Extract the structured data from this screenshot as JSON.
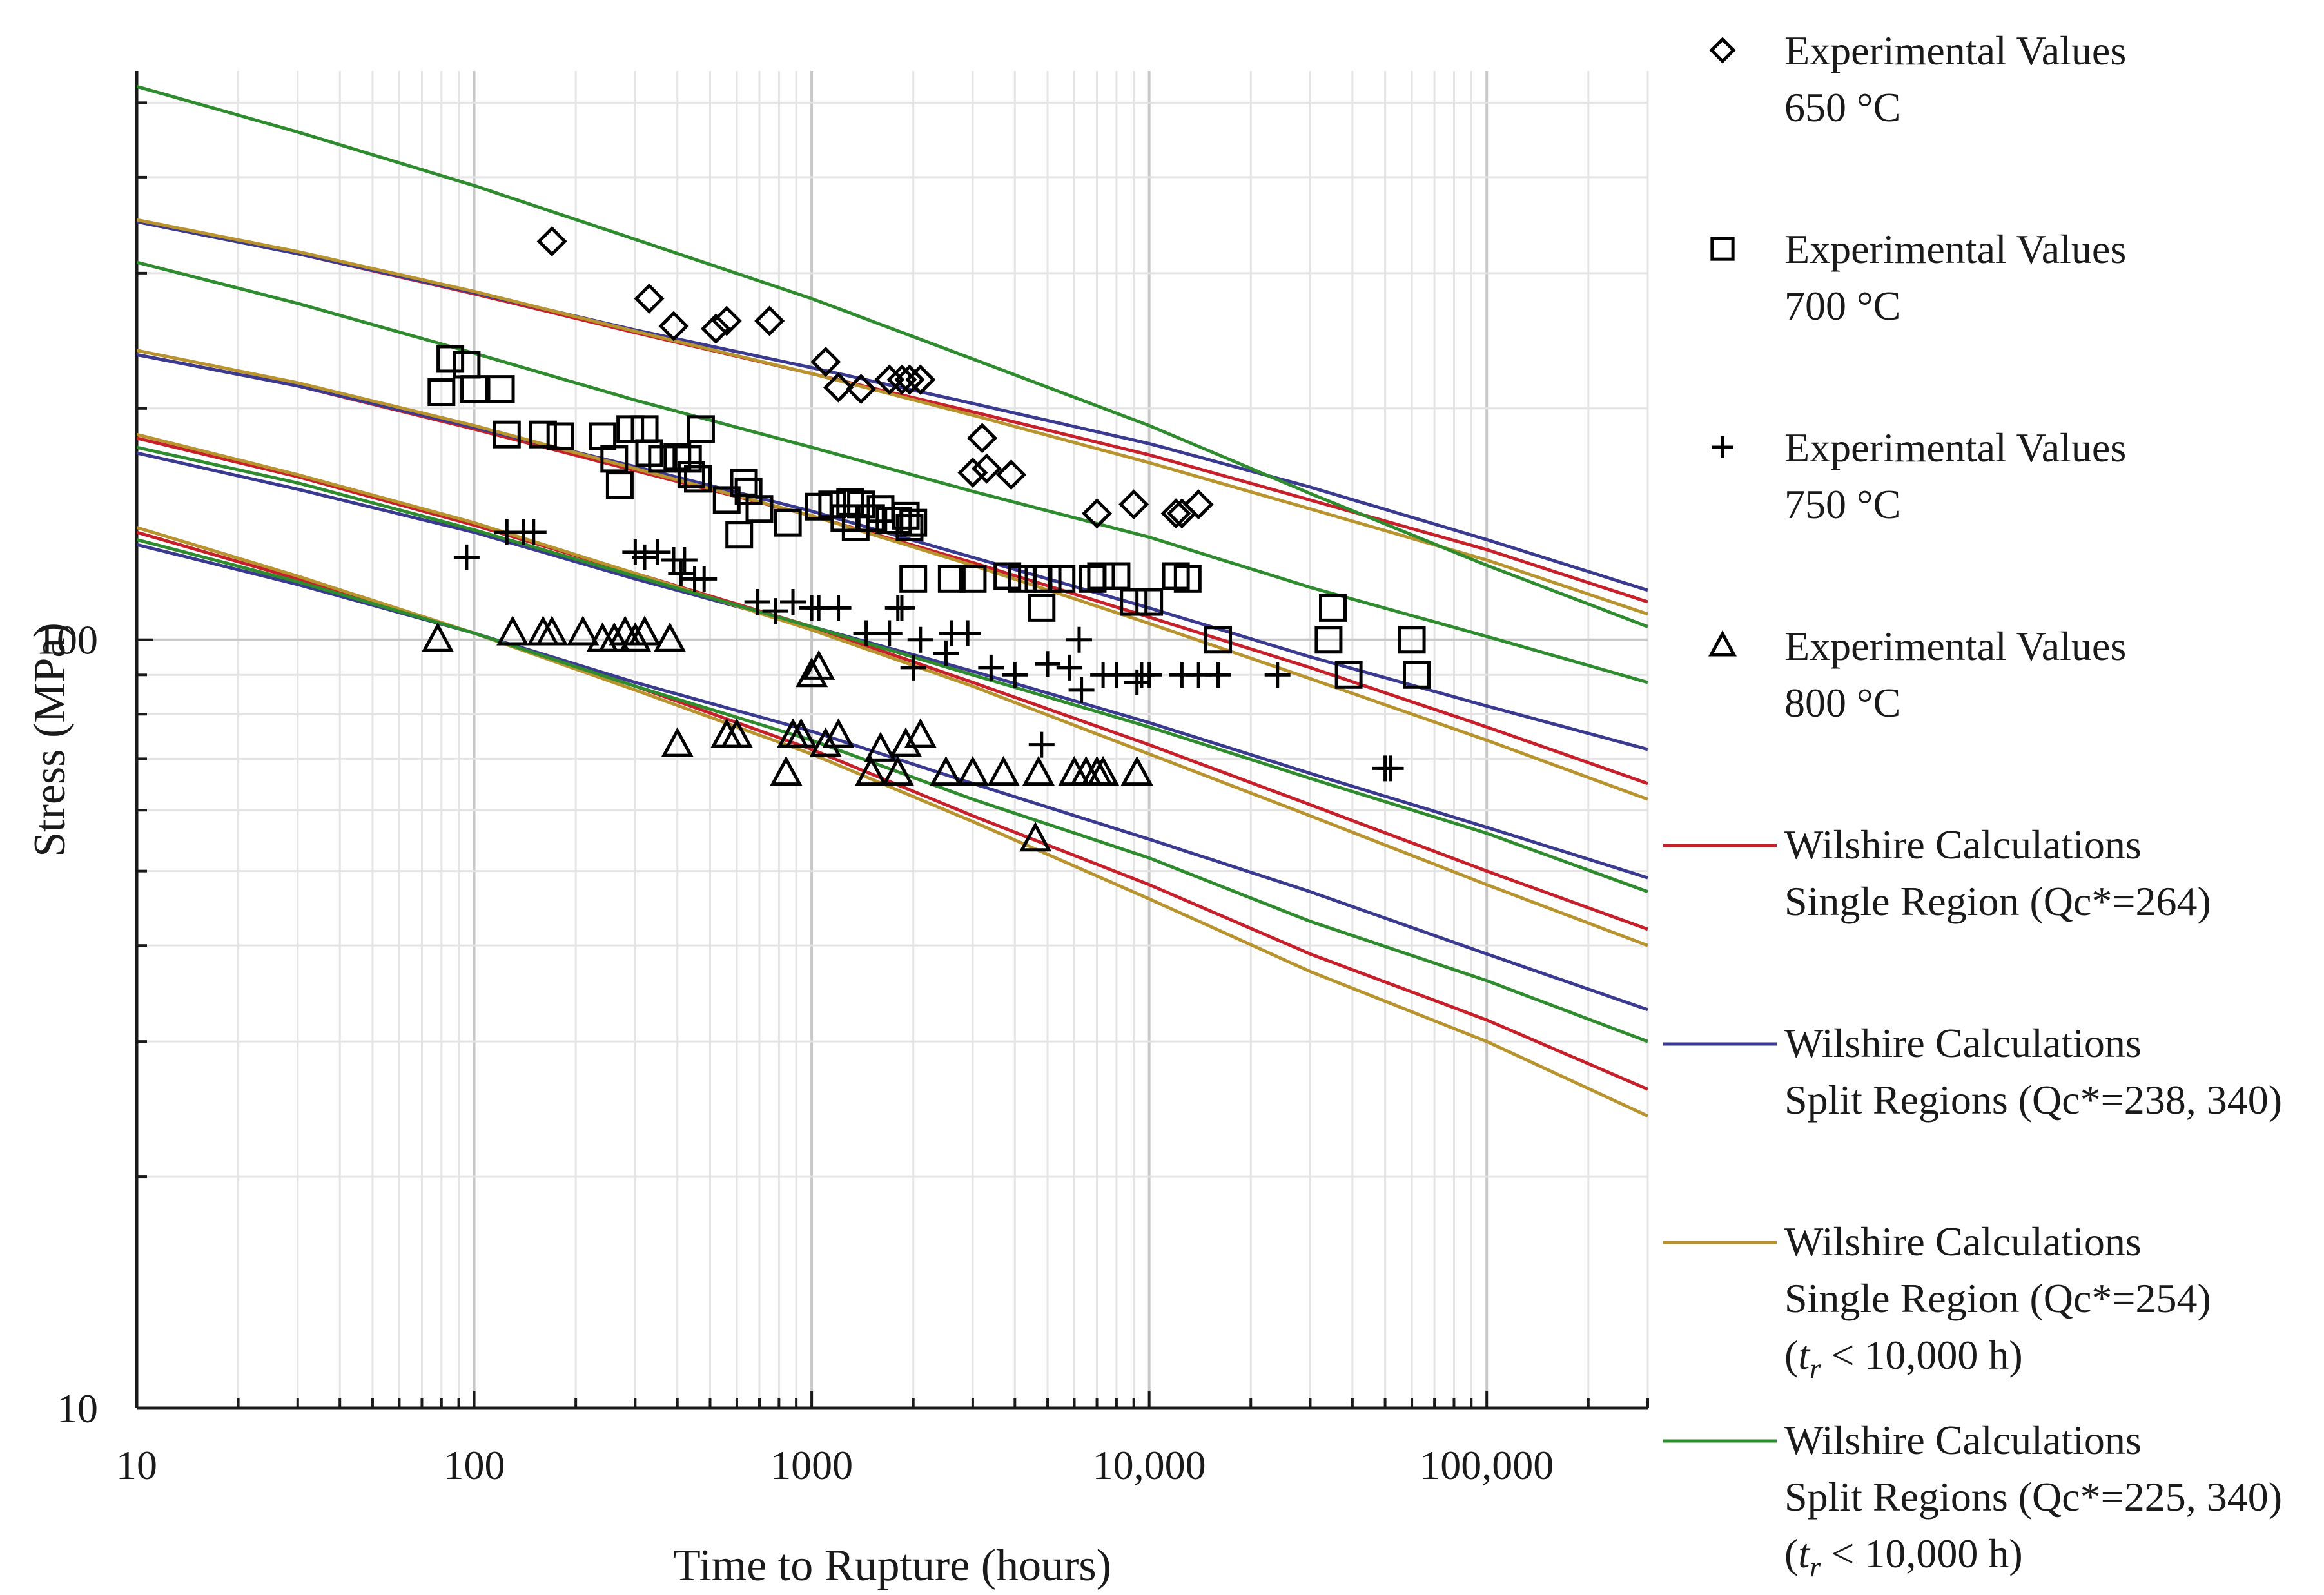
{
  "chart_data": {
    "type": "scatter",
    "xlabel": "Time to Rupture (hours)",
    "ylabel": "Stress (MPa)",
    "xscale": "log",
    "yscale": "log",
    "xlim": [
      10,
      300000
    ],
    "ylim": [
      10,
      550
    ],
    "grid": true,
    "legend_position": "right",
    "x_tick_labels": [
      {
        "value": 10,
        "label": "10"
      },
      {
        "value": 100,
        "label": "100"
      },
      {
        "value": 1000,
        "label": "1000"
      },
      {
        "value": 10000,
        "label": "10,000"
      },
      {
        "value": 100000,
        "label": "100,000"
      }
    ],
    "y_tick_labels": [
      {
        "value": 10,
        "label": "10"
      },
      {
        "value": 100,
        "label": "100"
      }
    ],
    "markers": [
      {
        "legend": [
          "Experimental Values",
          "650 °C"
        ],
        "symbol": "diamond",
        "color": "#000000",
        "points": [
          [
            170,
            330
          ],
          [
            330,
            278
          ],
          [
            390,
            256
          ],
          [
            520,
            254
          ],
          [
            560,
            260
          ],
          [
            750,
            260
          ],
          [
            1100,
            230
          ],
          [
            1200,
            213
          ],
          [
            1400,
            212
          ],
          [
            1700,
            218
          ],
          [
            1850,
            218
          ],
          [
            1950,
            218
          ],
          [
            2100,
            218
          ],
          [
            3000,
            165
          ],
          [
            3200,
            183
          ],
          [
            3300,
            167
          ],
          [
            3900,
            164
          ],
          [
            7000,
            146
          ],
          [
            9000,
            150
          ],
          [
            12000,
            146
          ],
          [
            12500,
            146
          ],
          [
            14000,
            150
          ]
        ]
      },
      {
        "legend": [
          "Experimental Values",
          "700 °C"
        ],
        "symbol": "square",
        "color": "#000000",
        "points": [
          [
            80,
            210
          ],
          [
            85,
            232
          ],
          [
            95,
            228
          ],
          [
            100,
            212
          ],
          [
            120,
            212
          ],
          [
            125,
            185
          ],
          [
            160,
            185
          ],
          [
            180,
            184
          ],
          [
            240,
            184
          ],
          [
            260,
            172
          ],
          [
            270,
            159
          ],
          [
            290,
            188
          ],
          [
            320,
            188
          ],
          [
            330,
            175
          ],
          [
            360,
            172
          ],
          [
            400,
            173
          ],
          [
            430,
            172
          ],
          [
            440,
            164
          ],
          [
            460,
            162
          ],
          [
            470,
            188
          ],
          [
            560,
            152
          ],
          [
            610,
            137
          ],
          [
            630,
            160
          ],
          [
            650,
            156
          ],
          [
            700,
            148
          ],
          [
            850,
            142
          ],
          [
            1050,
            149
          ],
          [
            1150,
            150
          ],
          [
            1250,
            144
          ],
          [
            1300,
            151
          ],
          [
            1350,
            140
          ],
          [
            1400,
            150
          ],
          [
            1500,
            144
          ],
          [
            1600,
            148
          ],
          [
            1700,
            143
          ],
          [
            1800,
            143
          ],
          [
            1900,
            145
          ],
          [
            1950,
            140
          ],
          [
            2000,
            142
          ],
          [
            2000,
            120
          ],
          [
            2600,
            120
          ],
          [
            3000,
            120
          ],
          [
            3800,
            121
          ],
          [
            4200,
            120
          ],
          [
            4700,
            120
          ],
          [
            4800,
            110
          ],
          [
            5000,
            120
          ],
          [
            5500,
            120
          ],
          [
            6800,
            120
          ],
          [
            7200,
            121
          ],
          [
            8000,
            121
          ],
          [
            9000,
            112
          ],
          [
            10000,
            112
          ],
          [
            12000,
            121
          ],
          [
            13000,
            120
          ],
          [
            16000,
            100
          ],
          [
            34000,
            100
          ],
          [
            35000,
            110
          ],
          [
            39000,
            90
          ],
          [
            60000,
            100
          ],
          [
            62000,
            90
          ]
        ]
      },
      {
        "legend": [
          "Experimental Values",
          "750 °C"
        ],
        "symbol": "plus",
        "color": "#000000",
        "points": [
          [
            95,
            128
          ],
          [
            125,
            138
          ],
          [
            140,
            138
          ],
          [
            150,
            138
          ],
          [
            300,
            130
          ],
          [
            320,
            128
          ],
          [
            350,
            130
          ],
          [
            390,
            127
          ],
          [
            410,
            122
          ],
          [
            420,
            127
          ],
          [
            450,
            120
          ],
          [
            480,
            120
          ],
          [
            690,
            112
          ],
          [
            780,
            109
          ],
          [
            880,
            112
          ],
          [
            1000,
            110
          ],
          [
            1050,
            110
          ],
          [
            1200,
            110
          ],
          [
            1450,
            102
          ],
          [
            1700,
            102
          ],
          [
            1800,
            110
          ],
          [
            1850,
            110
          ],
          [
            2000,
            92
          ],
          [
            2100,
            100
          ],
          [
            2500,
            96
          ],
          [
            2600,
            102
          ],
          [
            2900,
            102
          ],
          [
            3400,
            92
          ],
          [
            4000,
            90
          ],
          [
            4800,
            73
          ],
          [
            5000,
            93
          ],
          [
            5800,
            92
          ],
          [
            6200,
            100
          ],
          [
            6300,
            86
          ],
          [
            7300,
            90
          ],
          [
            8000,
            90
          ],
          [
            9200,
            88
          ],
          [
            9500,
            90
          ],
          [
            10000,
            90
          ],
          [
            12500,
            90
          ],
          [
            14000,
            90
          ],
          [
            16000,
            90
          ],
          [
            24000,
            90
          ],
          [
            50000,
            68
          ],
          [
            52000,
            68
          ]
        ]
      },
      {
        "legend": [
          "Experimental Values",
          "800 °C"
        ],
        "symbol": "triangle",
        "color": "#000000",
        "points": [
          [
            78,
            100
          ],
          [
            130,
            102
          ],
          [
            160,
            102
          ],
          [
            170,
            102
          ],
          [
            210,
            102
          ],
          [
            240,
            100
          ],
          [
            260,
            100
          ],
          [
            280,
            102
          ],
          [
            300,
            100
          ],
          [
            320,
            102
          ],
          [
            380,
            100
          ],
          [
            400,
            73
          ],
          [
            560,
            75
          ],
          [
            600,
            75
          ],
          [
            840,
            67
          ],
          [
            880,
            75
          ],
          [
            930,
            75
          ],
          [
            1000,
            90
          ],
          [
            1050,
            92
          ],
          [
            1100,
            73
          ],
          [
            1200,
            75
          ],
          [
            1500,
            67
          ],
          [
            1600,
            72
          ],
          [
            1800,
            67
          ],
          [
            1900,
            73
          ],
          [
            2100,
            75
          ],
          [
            2500,
            67
          ],
          [
            3000,
            67
          ],
          [
            3700,
            67
          ],
          [
            4600,
            55
          ],
          [
            4700,
            67
          ],
          [
            6000,
            67
          ],
          [
            6500,
            67
          ],
          [
            7000,
            67
          ],
          [
            7300,
            67
          ],
          [
            9200,
            67
          ]
        ]
      }
    ],
    "series": [
      {
        "name": [
          "Wilshire Calculations",
          "Single Region (Qc*=264)"
        ],
        "color": "#c8202a",
        "groups": [
          {
            "x": [
              10,
              30,
              100,
              300,
              1000,
              3000,
              10000,
              30000,
              100000,
              300000
            ],
            "y": [
              350,
              318,
              282,
              251,
              222,
              198,
              174,
              152,
              131,
              112
            ]
          },
          {
            "x": [
              10,
              30,
              100,
              300,
              1000,
              3000,
              10000,
              30000,
              100000,
              300000
            ],
            "y": [
              235,
              214,
              188,
              166,
              145,
              126,
              107,
              92,
              77,
              65
            ]
          },
          {
            "x": [
              10,
              30,
              100,
              300,
              1000,
              3000,
              10000,
              30000,
              100000,
              300000
            ],
            "y": [
              183,
              163,
              141,
              122,
              104,
              88,
              73,
              61,
              50,
              42
            ]
          },
          {
            "x": [
              10,
              30,
              100,
              300,
              1000,
              3000,
              10000,
              30000,
              100000,
              300000
            ],
            "y": [
              138,
              120,
              102,
              87,
              72,
              59,
              48,
              39,
              32,
              26
            ]
          }
        ]
      },
      {
        "name": [
          "Wilshire Calculations",
          "Split Regions (Qc*=238, 340)"
        ],
        "color": "#3a3a90",
        "groups": [
          {
            "x": [
              10,
              30,
              100,
              300,
              1000,
              3000,
              10000,
              30000,
              100000,
              300000
            ],
            "y": [
              350,
              318,
              283,
              253,
              226,
              203,
              180,
              158,
              135,
              116
            ]
          },
          {
            "x": [
              10,
              30,
              100,
              300,
              1000,
              3000,
              10000,
              30000,
              100000,
              300000
            ],
            "y": [
              235,
              214,
              189,
              168,
              147,
              128,
              110,
              95,
              82,
              72
            ]
          },
          {
            "x": [
              10,
              30,
              100,
              300,
              1000,
              3000,
              10000,
              30000,
              100000,
              300000
            ],
            "y": [
              175,
              157,
              138,
              120,
              104,
              91,
              78,
              67,
              57,
              49
            ]
          },
          {
            "x": [
              10,
              30,
              100,
              300,
              1000,
              3000,
              10000,
              30000,
              100000,
              300000
            ],
            "y": [
              133,
              118,
              102,
              88,
              76,
              65,
              55,
              47,
              39,
              33
            ]
          }
        ]
      },
      {
        "name": [
          "Wilshire Calculations",
          "Single Region (Qc*=254)",
          "(tr < 10,000 h)"
        ],
        "color": "#b8932e",
        "groups": [
          {
            "x": [
              10,
              30,
              100,
              300,
              1000,
              3000,
              10000,
              30000,
              100000,
              300000
            ],
            "y": [
              352,
              320,
              284,
              252,
              222,
              196,
              170,
              148,
              127,
              108
            ]
          },
          {
            "x": [
              10,
              30,
              100,
              300,
              1000,
              3000,
              10000,
              30000,
              100000,
              300000
            ],
            "y": [
              238,
              216,
              190,
              167,
              145,
              125,
              105,
              89,
              74,
              62
            ]
          },
          {
            "x": [
              10,
              30,
              100,
              300,
              1000,
              3000,
              10000,
              30000,
              100000,
              300000
            ],
            "y": [
              185,
              164,
              142,
              122,
              103,
              87,
              71,
              59,
              48,
              40
            ]
          },
          {
            "x": [
              10,
              30,
              100,
              300,
              1000,
              3000,
              10000,
              30000,
              100000,
              300000
            ],
            "y": [
              140,
              121,
              102,
              86,
              71,
              58,
              46,
              37,
              30,
              24
            ]
          }
        ]
      },
      {
        "name": [
          "Wilshire Calculations",
          "Split Regions (Qc*=225, 340)",
          "(tr < 10,000 h)"
        ],
        "color": "#2e8b2e",
        "groups": [
          {
            "x": [
              10,
              30,
              100,
              300,
              1000,
              3000,
              10000,
              30000,
              100000,
              300000
            ],
            "y": [
              525,
              458,
              390,
              332,
              278,
              232,
              190,
              155,
              125,
              104
            ]
          },
          {
            "x": [
              10,
              30,
              100,
              300,
              1000,
              3000,
              10000,
              30000,
              100000,
              300000
            ],
            "y": [
              310,
              274,
              236,
              205,
              178,
              156,
              136,
              117,
              101,
              88
            ]
          },
          {
            "x": [
              10,
              30,
              100,
              300,
              1000,
              3000,
              10000,
              30000,
              100000,
              300000
            ],
            "y": [
              178,
              160,
              139,
              121,
              104,
              90,
              77,
              66,
              56,
              47
            ]
          },
          {
            "x": [
              10,
              30,
              100,
              300,
              1000,
              3000,
              10000,
              30000,
              100000,
              300000
            ],
            "y": [
              135,
              119,
              102,
              87,
              74,
              62,
              52,
              43,
              36,
              30
            ]
          }
        ]
      }
    ]
  }
}
